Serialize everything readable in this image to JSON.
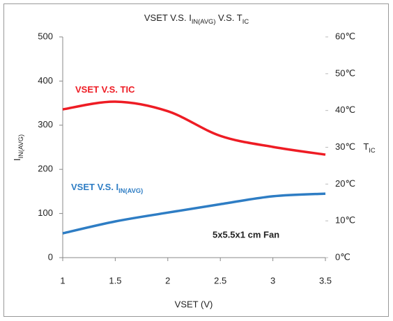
{
  "chart_data": {
    "type": "line",
    "title": [
      {
        "text": "VSET V.S. I"
      },
      {
        "text": "IN(AVG)",
        "sub": true
      },
      {
        "text": " V.S. T"
      },
      {
        "text": "IC",
        "sub": true
      }
    ],
    "xlabel": "VSET (V)",
    "ylabel": [
      {
        "text": "I"
      },
      {
        "text": "IN(AVG)",
        "sub": true
      }
    ],
    "y2label": [
      {
        "text": "T"
      },
      {
        "text": "IC",
        "sub": true
      }
    ],
    "annotations": [
      "5x5.5x1 cm Fan"
    ],
    "x": [
      1,
      1.5,
      2,
      2.5,
      3,
      3.5
    ],
    "xlim": [
      1,
      3.5
    ],
    "xticks": [
      1,
      1.5,
      2,
      2.5,
      3,
      3.5
    ],
    "ylim": [
      0,
      500
    ],
    "yticks": [
      0,
      100,
      200,
      300,
      400,
      500
    ],
    "y2lim": [
      0,
      60
    ],
    "y2ticks": [
      {
        "value": 0,
        "label": "0℃"
      },
      {
        "value": 10,
        "label": "10℃"
      },
      {
        "value": 20,
        "label": "20℃"
      },
      {
        "value": 30,
        "label": "30℃"
      },
      {
        "value": 40,
        "label": "40℃"
      },
      {
        "value": 50,
        "label": "50℃"
      },
      {
        "value": 60,
        "label": "60℃"
      }
    ],
    "series": [
      {
        "name": [
          {
            "text": "VSET V.S. TIC"
          }
        ],
        "color": "#ee1c24",
        "axis": "y2",
        "values": [
          40.3,
          42.4,
          39.8,
          33.1,
          30.1,
          28.0
        ]
      },
      {
        "name": [
          {
            "text": "VSET V.S. I"
          },
          {
            "text": "IN(AVG)",
            "sub": true
          }
        ],
        "color": "#2e7dc4",
        "values": [
          55,
          82,
          102,
          121,
          139,
          145
        ]
      }
    ]
  }
}
